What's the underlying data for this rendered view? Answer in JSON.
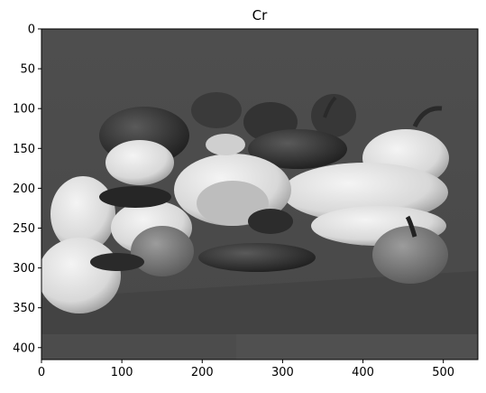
{
  "chart_data": {
    "type": "heatmap",
    "title": "Cr",
    "xlabel": "",
    "ylabel": "",
    "xlim": [
      0,
      543
    ],
    "ylim": [
      415,
      0
    ],
    "x_ticks": [
      0,
      100,
      200,
      300,
      400,
      500
    ],
    "y_ticks": [
      0,
      50,
      100,
      150,
      200,
      250,
      300,
      350,
      400
    ],
    "colormap": "gray",
    "grid": false,
    "legend": "none",
    "image_description_colors": {
      "background": "#4a4a4a",
      "shadow": "#2e2e2e",
      "highlight": "#e8e8e8"
    }
  }
}
